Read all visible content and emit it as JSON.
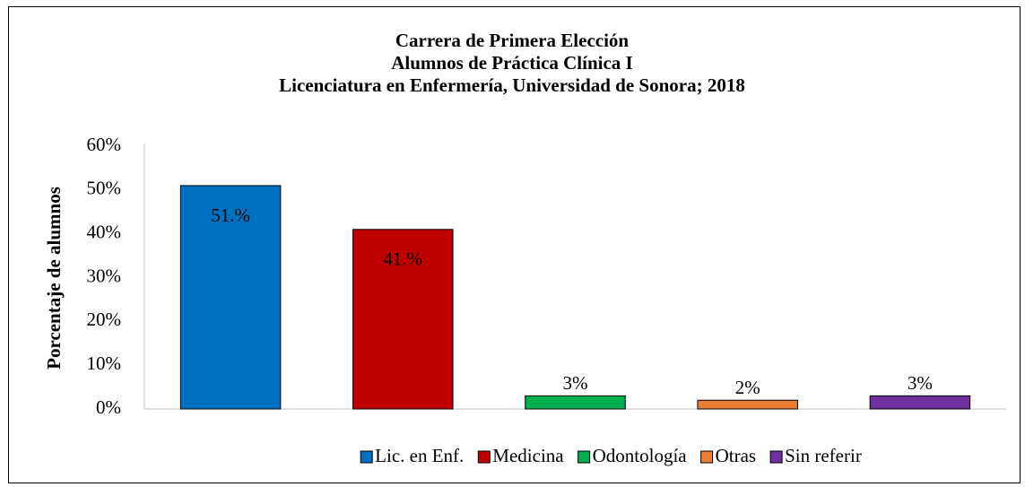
{
  "chart_data": {
    "type": "bar",
    "title": [
      "Carrera de Primera Elección",
      "Alumnos de Práctica Clínica I",
      "Licenciatura en Enfermería, Universidad de Sonora; 2018"
    ],
    "ylabel": "Porcentaje de alumnos",
    "categories": [
      "Lic. en Enf.",
      "Medicina",
      "Odontología",
      "Otras",
      "Sin referir"
    ],
    "values": [
      51,
      41,
      3,
      2,
      3
    ],
    "value_labels": [
      "51.%",
      "41.%",
      "3%",
      "2%",
      "3%"
    ],
    "colors": [
      "#0070c0",
      "#c00000",
      "#00b050",
      "#ed7d31",
      "#7030a0"
    ],
    "ylim": [
      0,
      60
    ],
    "yticks": [
      {
        "value": 0,
        "label": "0%"
      },
      {
        "value": 10,
        "label": "10%"
      },
      {
        "value": 20,
        "label": "20%"
      },
      {
        "value": 30,
        "label": "30%"
      },
      {
        "value": 40,
        "label": "40%"
      },
      {
        "value": 50,
        "label": "50%"
      },
      {
        "value": 60,
        "label": "60%"
      }
    ],
    "grid": false,
    "legend": "bottom"
  }
}
